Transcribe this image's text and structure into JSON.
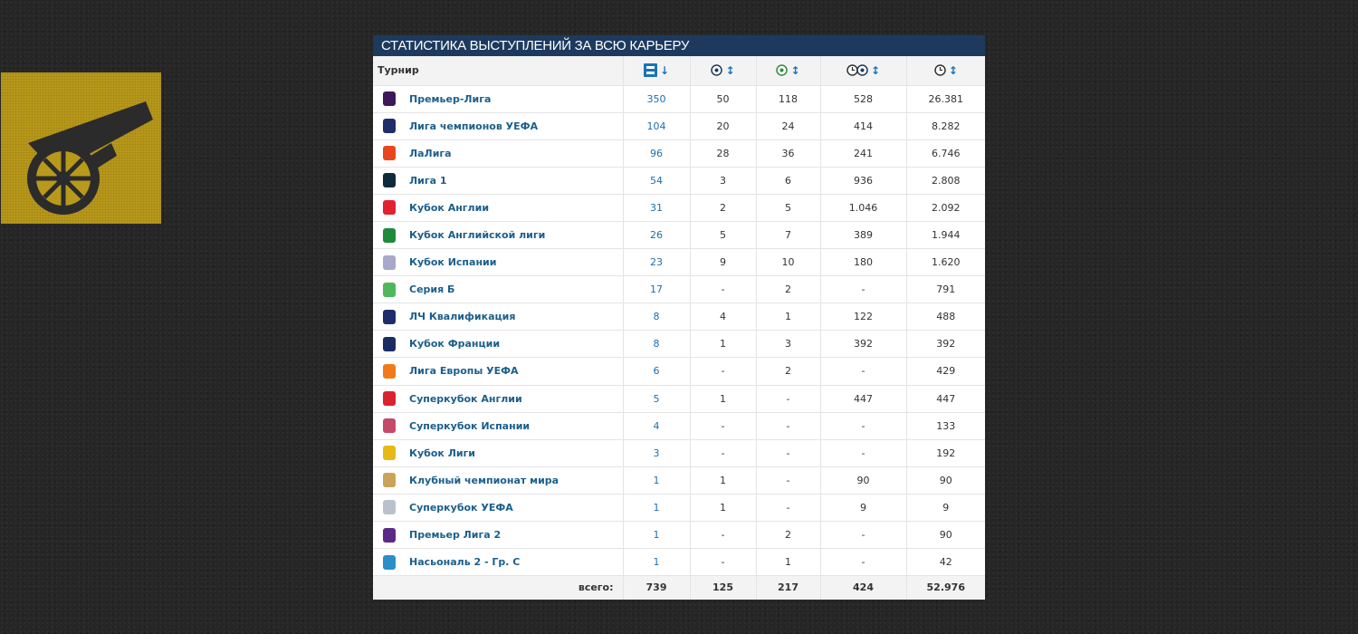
{
  "colors": {
    "header_bg": "#1d3a5e",
    "link": "#1b5f8c",
    "accent": "#1a73b8",
    "logo_bg": "#b9991a"
  },
  "club_logo": {
    "icon": "cannon-icon"
  },
  "section_title": "СТАТИСТИКА ВЫСТУПЛЕНИЙ ЗА ВСЮ КАРЬЕРУ",
  "table": {
    "col_competition": "Турнир",
    "columns": [
      {
        "icon": "appearances-icon",
        "sort": "↓"
      },
      {
        "icon": "goals-icon",
        "sort": "↕"
      },
      {
        "icon": "assists-icon",
        "sort": "↕"
      },
      {
        "icon": "minutes-per-goal-icon",
        "sort": "↕"
      },
      {
        "icon": "minutes-played-icon",
        "sort": "↕"
      }
    ],
    "rows": [
      {
        "name": "Премьер-Лига",
        "logo_color": "#3d195b",
        "apps": "350",
        "goals": "50",
        "assists": "118",
        "mpg": "528",
        "minutes": "26.381"
      },
      {
        "name": "Лига чемпионов УЕФА",
        "logo_color": "#1f2d6b",
        "apps": "104",
        "goals": "20",
        "assists": "24",
        "mpg": "414",
        "minutes": "8.282"
      },
      {
        "name": "ЛаЛига",
        "logo_color": "#e8461e",
        "apps": "96",
        "goals": "28",
        "assists": "36",
        "mpg": "241",
        "minutes": "6.746"
      },
      {
        "name": "Лига 1",
        "logo_color": "#0f2a3d",
        "apps": "54",
        "goals": "3",
        "assists": "6",
        "mpg": "936",
        "minutes": "2.808"
      },
      {
        "name": "Кубок Англии",
        "logo_color": "#e0212f",
        "apps": "31",
        "goals": "2",
        "assists": "5",
        "mpg": "1.046",
        "minutes": "2.092"
      },
      {
        "name": "Кубок Английской лиги",
        "logo_color": "#1f8a3a",
        "apps": "26",
        "goals": "5",
        "assists": "7",
        "mpg": "389",
        "minutes": "1.944"
      },
      {
        "name": "Кубок Испании",
        "logo_color": "#a8a8c8",
        "apps": "23",
        "goals": "9",
        "assists": "10",
        "mpg": "180",
        "minutes": "1.620"
      },
      {
        "name": "Серия Б",
        "logo_color": "#4fb85a",
        "apps": "17",
        "goals": "-",
        "assists": "2",
        "mpg": "-",
        "minutes": "791"
      },
      {
        "name": "ЛЧ Квалификация",
        "logo_color": "#1f2d6b",
        "apps": "8",
        "goals": "4",
        "assists": "1",
        "mpg": "122",
        "minutes": "488"
      },
      {
        "name": "Кубок Франции",
        "logo_color": "#1b2b63",
        "apps": "8",
        "goals": "1",
        "assists": "3",
        "mpg": "392",
        "minutes": "392"
      },
      {
        "name": "Лига Европы УЕФА",
        "logo_color": "#f07a1a",
        "apps": "6",
        "goals": "-",
        "assists": "2",
        "mpg": "-",
        "minutes": "429"
      },
      {
        "name": "Суперкубок Англии",
        "logo_color": "#d9232e",
        "apps": "5",
        "goals": "1",
        "assists": "-",
        "mpg": "447",
        "minutes": "447"
      },
      {
        "name": "Суперкубок Испании",
        "logo_color": "#c44a6a",
        "apps": "4",
        "goals": "-",
        "assists": "-",
        "mpg": "-",
        "minutes": "133"
      },
      {
        "name": "Кубок Лиги",
        "logo_color": "#e6b917",
        "apps": "3",
        "goals": "-",
        "assists": "-",
        "mpg": "-",
        "minutes": "192"
      },
      {
        "name": "Клубный чемпионат мира",
        "logo_color": "#c9a35a",
        "apps": "1",
        "goals": "1",
        "assists": "-",
        "mpg": "90",
        "minutes": "90"
      },
      {
        "name": "Суперкубок УЕФА",
        "logo_color": "#b9c2cc",
        "apps": "1",
        "goals": "1",
        "assists": "-",
        "mpg": "9",
        "minutes": "9"
      },
      {
        "name": "Премьер Лига 2",
        "logo_color": "#5b2a86",
        "apps": "1",
        "goals": "-",
        "assists": "2",
        "mpg": "-",
        "minutes": "90"
      },
      {
        "name": "Насьональ 2 - Гр. С",
        "logo_color": "#2a8fc9",
        "apps": "1",
        "goals": "-",
        "assists": "1",
        "mpg": "-",
        "minutes": "42"
      }
    ],
    "totals": {
      "label": "всего:",
      "apps": "739",
      "goals": "125",
      "assists": "217",
      "mpg": "424",
      "minutes": "52.976"
    }
  }
}
